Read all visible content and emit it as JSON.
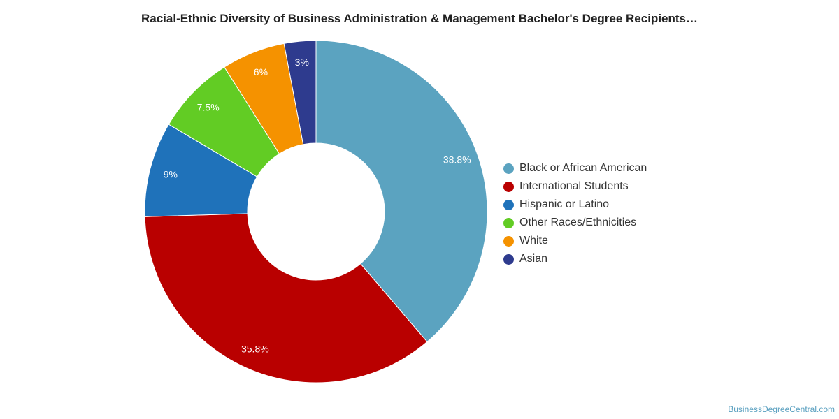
{
  "title": "Racial-Ethnic Diversity of Business Administration & Management Bachelor's Degree Recipients…",
  "source": "BusinessDegreeCentral.com",
  "chart_data": {
    "type": "pie",
    "variant": "donut",
    "title": "Racial-Ethnic Diversity of Business Administration & Management Bachelor's Degree Recipients…",
    "legend_position": "right",
    "slices": [
      {
        "name": "Black or African American",
        "value": 38.8,
        "label": "38.8%",
        "color": "#5ba3c0"
      },
      {
        "name": "International Students",
        "value": 35.8,
        "label": "35.8%",
        "color": "#b90000"
      },
      {
        "name": "Hispanic or Latino",
        "value": 9,
        "label": "9%",
        "color": "#1f72ba"
      },
      {
        "name": "Other Races/Ethnicities",
        "value": 7.5,
        "label": "7.5%",
        "color": "#62cc24"
      },
      {
        "name": "White",
        "value": 6,
        "label": "6%",
        "color": "#f59200"
      },
      {
        "name": "Asian",
        "value": 3,
        "label": "3%",
        "color": "#2e3b8e"
      }
    ]
  }
}
